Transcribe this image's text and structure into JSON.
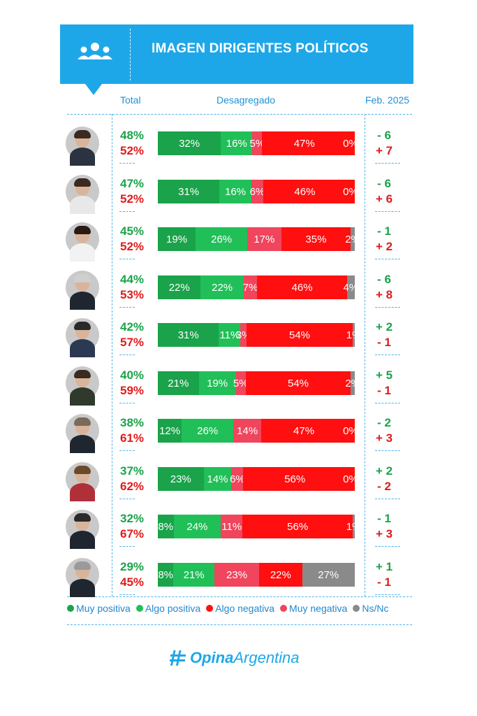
{
  "header": {
    "title": "IMAGEN DIRIGENTES POLÍTICOS",
    "icon": "group-of-people-icon",
    "col_total": "Total",
    "col_desagregado": "Desagregado",
    "col_feb": "Feb. 2025"
  },
  "colors": {
    "muy_positiva": "#1aa34a",
    "algo_positiva": "#21bf58",
    "algo_negativa": "#ff0f0f",
    "muy_negativa": "#f0455d",
    "ns_nc": "#8a8a8a",
    "accent": "#1ea7e8"
  },
  "legend": [
    {
      "label": "Muy positiva",
      "color": "#1aa34a"
    },
    {
      "label": "Algo positiva",
      "color": "#21bf58"
    },
    {
      "label": "Algo negativa",
      "color": "#ff0f0f"
    },
    {
      "label": "Muy negativa",
      "color": "#f0455d"
    },
    {
      "label": "Ns/Nc",
      "color": "#8a8a8a"
    }
  ],
  "logo": {
    "part1": "Opina",
    "part2": "Argentina",
    "icon": "hashtag-icon"
  },
  "chart_data": {
    "type": "bar",
    "stacked": true,
    "orientation": "horizontal",
    "series_names": [
      "Muy positiva",
      "Algo positiva",
      "Muy negativa",
      "Algo negativa",
      "Ns/Nc"
    ],
    "rows": [
      {
        "pos_total": "48%",
        "neg_total": "52%",
        "values": [
          32,
          16,
          5,
          47,
          0
        ],
        "labels": [
          "32%",
          "16%",
          "5%",
          "47%",
          "0%"
        ],
        "chg_pos": "- 6",
        "chg_neg": "+ 7"
      },
      {
        "pos_total": "47%",
        "neg_total": "52%",
        "values": [
          31,
          16,
          6,
          46,
          0
        ],
        "labels": [
          "31%",
          "16%",
          "6%",
          "46%",
          "0%"
        ],
        "chg_pos": "- 6",
        "chg_neg": "+ 6"
      },
      {
        "pos_total": "45%",
        "neg_total": "52%",
        "values": [
          19,
          26,
          17,
          35,
          2
        ],
        "labels": [
          "19%",
          "26%",
          "17%",
          "35%",
          "2%"
        ],
        "chg_pos": "- 1",
        "chg_neg": "+ 2"
      },
      {
        "pos_total": "44%",
        "neg_total": "53%",
        "values": [
          22,
          22,
          7,
          46,
          4
        ],
        "labels": [
          "22%",
          "22%",
          "7%",
          "46%",
          "4%"
        ],
        "chg_pos": "- 6",
        "chg_neg": "+ 8"
      },
      {
        "pos_total": "42%",
        "neg_total": "57%",
        "values": [
          31,
          11,
          3,
          54,
          1
        ],
        "labels": [
          "31%",
          "11%",
          "3%",
          "54%",
          "1%"
        ],
        "chg_pos": "+ 2",
        "chg_neg": "- 1"
      },
      {
        "pos_total": "40%",
        "neg_total": "59%",
        "values": [
          21,
          19,
          5,
          54,
          2
        ],
        "labels": [
          "21%",
          "19%",
          "5%",
          "54%",
          "2%"
        ],
        "chg_pos": "+ 5",
        "chg_neg": "- 1"
      },
      {
        "pos_total": "38%",
        "neg_total": "61%",
        "values": [
          12,
          26,
          14,
          47,
          0
        ],
        "labels": [
          "12%",
          "26%",
          "14%",
          "47%",
          "0%"
        ],
        "chg_pos": "- 2",
        "chg_neg": "+ 3"
      },
      {
        "pos_total": "37%",
        "neg_total": "62%",
        "values": [
          23,
          14,
          6,
          56,
          0
        ],
        "labels": [
          "23%",
          "14%",
          "6%",
          "56%",
          "0%"
        ],
        "chg_pos": "+ 2",
        "chg_neg": "- 2"
      },
      {
        "pos_total": "32%",
        "neg_total": "67%",
        "values": [
          8,
          24,
          11,
          56,
          1
        ],
        "labels": [
          "8%",
          "24%",
          "11%",
          "56%",
          "1%"
        ],
        "chg_pos": "- 1",
        "chg_neg": "+ 3"
      },
      {
        "pos_total": "29%",
        "neg_total": "45%",
        "values": [
          8,
          21,
          23,
          22,
          27
        ],
        "labels": [
          "8%",
          "21%",
          "23%",
          "22%",
          "27%"
        ],
        "chg_pos": "+ 1",
        "chg_neg": "- 1"
      }
    ]
  }
}
